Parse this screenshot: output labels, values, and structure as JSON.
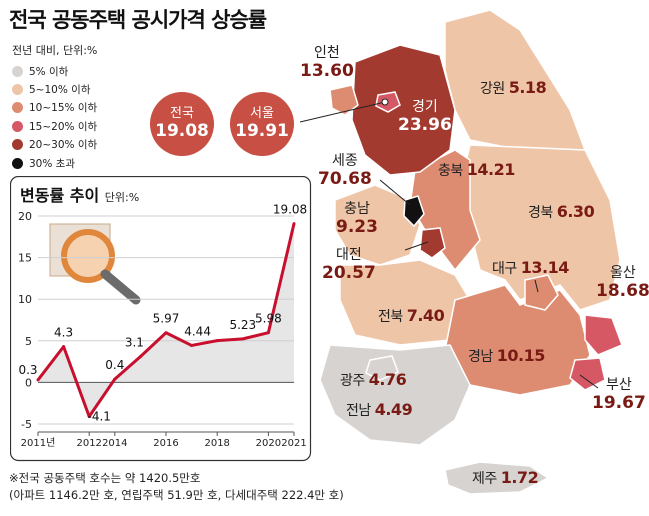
{
  "title": "전국 공동주택 공시가격 상승률",
  "subtitle": "전년 대비, 단위:%",
  "legend": [
    {
      "label": "5% 이하",
      "color": "#d6d3d0"
    },
    {
      "label": "5~10% 이하",
      "color": "#efc5a7"
    },
    {
      "label": "10~15% 이하",
      "color": "#dd8c71"
    },
    {
      "label": "15~20% 이하",
      "color": "#d65865"
    },
    {
      "label": "20~30% 이하",
      "color": "#a33a30"
    },
    {
      "label": "30% 초과",
      "color": "#111111"
    }
  ],
  "summary": {
    "national": {
      "name": "전국",
      "value": "19.08"
    },
    "seoul": {
      "name": "서울",
      "value": "19.91"
    }
  },
  "regions": [
    {
      "name": "인천",
      "value": "13.60",
      "bin": "10~15% 이하"
    },
    {
      "name": "경기",
      "value": "23.96",
      "bin": "20~30% 이하"
    },
    {
      "name": "강원",
      "value": "5.18",
      "bin": "5~10% 이하"
    },
    {
      "name": "세종",
      "value": "70.68",
      "bin": "30% 초과"
    },
    {
      "name": "충북",
      "value": "14.21",
      "bin": "10~15% 이하"
    },
    {
      "name": "충남",
      "value": "9.23",
      "bin": "5~10% 이하"
    },
    {
      "name": "경북",
      "value": "6.30",
      "bin": "5~10% 이하"
    },
    {
      "name": "대전",
      "value": "20.57",
      "bin": "20~30% 이하"
    },
    {
      "name": "대구",
      "value": "13.14",
      "bin": "10~15% 이하"
    },
    {
      "name": "울산",
      "value": "18.68",
      "bin": "15~20% 이하"
    },
    {
      "name": "전북",
      "value": "7.40",
      "bin": "5~10% 이하"
    },
    {
      "name": "경남",
      "value": "10.15",
      "bin": "10~15% 이하"
    },
    {
      "name": "광주",
      "value": "4.76",
      "bin": "5% 이하"
    },
    {
      "name": "부산",
      "value": "19.67",
      "bin": "15~20% 이하"
    },
    {
      "name": "전남",
      "value": "4.49",
      "bin": "5% 이하"
    },
    {
      "name": "제주",
      "value": "1.72",
      "bin": "5% 이하"
    }
  ],
  "inset": {
    "title": "변동률 추이",
    "unit": "단위:%",
    "chart_data": {
      "type": "line",
      "x": [
        2011,
        2012,
        2013,
        2014,
        2015,
        2016,
        2017,
        2018,
        2019,
        2020,
        2021
      ],
      "values": [
        0.3,
        4.3,
        -4.1,
        0.4,
        3.1,
        5.97,
        4.44,
        5.02,
        5.23,
        5.98,
        19.08
      ],
      "data_labels": [
        "0.3",
        "4.3",
        "-4.1",
        "0.4",
        "3.1",
        "5.97",
        "4.44",
        "",
        "5.23",
        "5.98",
        "19.08"
      ],
      "x_tick_labels": [
        "2011년",
        "2012",
        "2014",
        "2016",
        "2018",
        "2020",
        "2021"
      ],
      "y_ticks": [
        "-5",
        "0",
        "5",
        "10",
        "15",
        "20"
      ],
      "ylim": [
        -5,
        20
      ],
      "line_color": "#c8102e"
    }
  },
  "footnote": {
    "line1": "※전국 공동주택 호수는 약 1420.5만호",
    "line2": "(아파트 1146.2만 호, 연립주택 51.9만 호, 다세대주택 222.4만 호)"
  }
}
